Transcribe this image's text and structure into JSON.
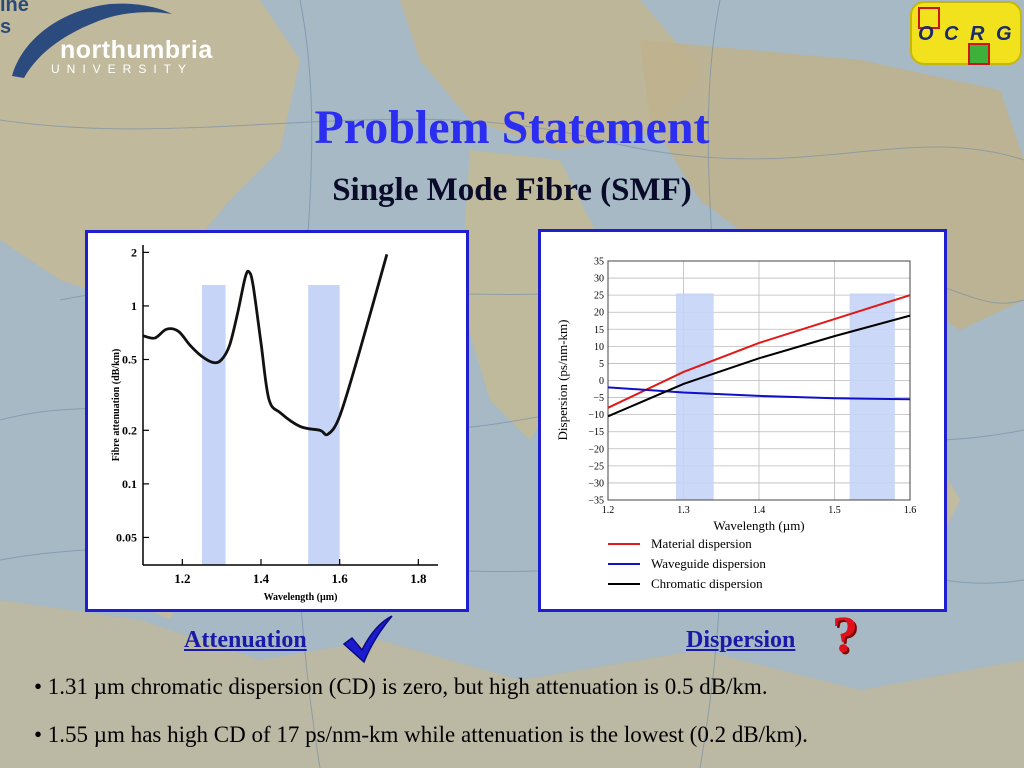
{
  "slide": {
    "title": "Problem Statement",
    "subtitle": "Single Mode Fibre (SMF)"
  },
  "logos": {
    "university_fragment": "ine\ns",
    "university_name": "northumbria",
    "university_word": "UNIVERSITY",
    "group_letters": [
      "O",
      "C",
      "R",
      "G"
    ]
  },
  "attenuation_panel": {
    "label": "Attenuation",
    "status_icon": "check-icon"
  },
  "dispersion_panel": {
    "label": "Dispersion",
    "status_icon": "question-mark-icon"
  },
  "bullets": [
    "• 1.31 µm chromatic dispersion (CD) is zero, but high attenuation is 0.5 dB/km.",
    "• 1.55 µm has high CD of 17 ps/nm-km while attenuation is the lowest (0.2 dB/km)."
  ],
  "colors": {
    "title": "#2b2ef0",
    "panel_border": "#1f1fd0",
    "window_band": "#c6d4f7",
    "material": "#e01818",
    "waveguide": "#1010c8",
    "chromatic": "#000000",
    "question": "#e0111a"
  },
  "chart_data": [
    {
      "type": "line",
      "title": "",
      "xlabel": "Wavelength (µm)",
      "ylabel": "Fibre attenuation (dB/km)",
      "yscale": "log",
      "xlim": [
        1.1,
        1.85
      ],
      "ylim": [
        0.035,
        2.2
      ],
      "x_ticks": [
        1.2,
        1.4,
        1.6,
        1.8
      ],
      "x_tick_labels": [
        "1.2",
        "1.4",
        "1.6",
        "1.8"
      ],
      "y_ticks": [
        2,
        1,
        0.5,
        0.2,
        0.1,
        0.05
      ],
      "y_tick_labels": [
        "2",
        "1",
        "0.5",
        "0.2",
        "0.1",
        "0.05"
      ],
      "grid": false,
      "shaded_windows": [
        [
          1.25,
          1.31
        ],
        [
          1.52,
          1.6
        ]
      ],
      "series": [
        {
          "x": [
            1.1,
            1.13,
            1.16,
            1.19,
            1.22,
            1.25,
            1.28,
            1.3,
            1.32,
            1.34,
            1.36,
            1.37,
            1.38,
            1.4,
            1.42,
            1.45,
            1.5,
            1.55,
            1.57,
            1.6,
            1.65,
            1.72
          ],
          "y": [
            0.68,
            0.66,
            0.74,
            0.72,
            0.6,
            0.52,
            0.48,
            0.5,
            0.6,
            0.9,
            1.45,
            1.55,
            1.3,
            0.62,
            0.3,
            0.25,
            0.21,
            0.2,
            0.19,
            0.24,
            0.55,
            1.95
          ]
        }
      ]
    },
    {
      "type": "line",
      "title": "",
      "xlabel": "Wavelength (µm)",
      "ylabel": "Dispersion (ps/nm-km)",
      "xlim": [
        1.2,
        1.6
      ],
      "ylim": [
        -35,
        35
      ],
      "x_ticks": [
        1.2,
        1.3,
        1.4,
        1.5,
        1.6
      ],
      "x_tick_labels": [
        "1.2",
        "1.3",
        "1.4",
        "1.5",
        "1.6"
      ],
      "y_ticks": [
        35,
        30,
        25,
        20,
        15,
        10,
        5,
        0,
        -5,
        -10,
        -15,
        -20,
        -25,
        -30,
        -35
      ],
      "y_tick_labels": [
        "35",
        "30",
        "25",
        "20",
        "15",
        "10",
        "5",
        "0",
        "−5",
        "−10",
        "−15",
        "−20",
        "−25",
        "−30",
        "−35"
      ],
      "grid": true,
      "legend_position": "bottom",
      "shaded_windows": [
        [
          1.29,
          1.34
        ],
        [
          1.52,
          1.58
        ]
      ],
      "x": [
        1.2,
        1.3,
        1.4,
        1.5,
        1.6
      ],
      "series": [
        {
          "name": "Material dispersion",
          "color": "#e01818",
          "values": [
            -8,
            2.5,
            11,
            18,
            25
          ]
        },
        {
          "name": "Waveguide dispersion",
          "color": "#1010c8",
          "values": [
            -2,
            -3.5,
            -4.5,
            -5.2,
            -5.5
          ]
        },
        {
          "name": "Chromatic dispersion",
          "color": "#000000",
          "values": [
            -10.5,
            -1,
            6.5,
            13,
            19
          ]
        }
      ]
    }
  ]
}
